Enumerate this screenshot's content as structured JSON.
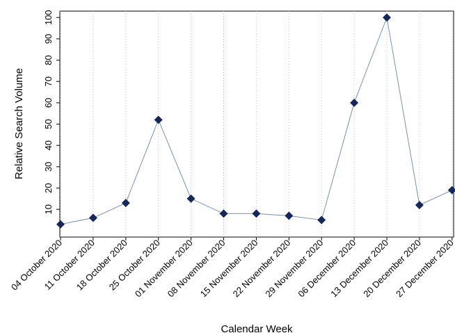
{
  "chart_data": {
    "type": "line",
    "xlabel": "Calendar Week",
    "ylabel": "Relative Search Volume",
    "categories": [
      "04 October 2020",
      "11 October 2020",
      "18 October 2020",
      "25 October 2020",
      "01 November 2020",
      "08 November 2020",
      "15 November 2020",
      "22 November 2020",
      "29 November 2020",
      "06 December 2020",
      "13 December 2020",
      "20 December 2020",
      "27 December 2020"
    ],
    "series": [
      {
        "values": [
          3,
          6,
          13,
          52,
          15,
          8,
          8,
          7,
          5,
          60,
          100,
          12,
          19
        ]
      }
    ],
    "yticks": [
      10,
      20,
      30,
      40,
      50,
      60,
      70,
      80,
      90,
      100
    ],
    "ylim": [
      -3,
      103
    ],
    "grid": "vertical dotted",
    "colors": {
      "line": "#7a8fb0",
      "marker": "#14285a",
      "grid": "#bdbdbd"
    }
  }
}
